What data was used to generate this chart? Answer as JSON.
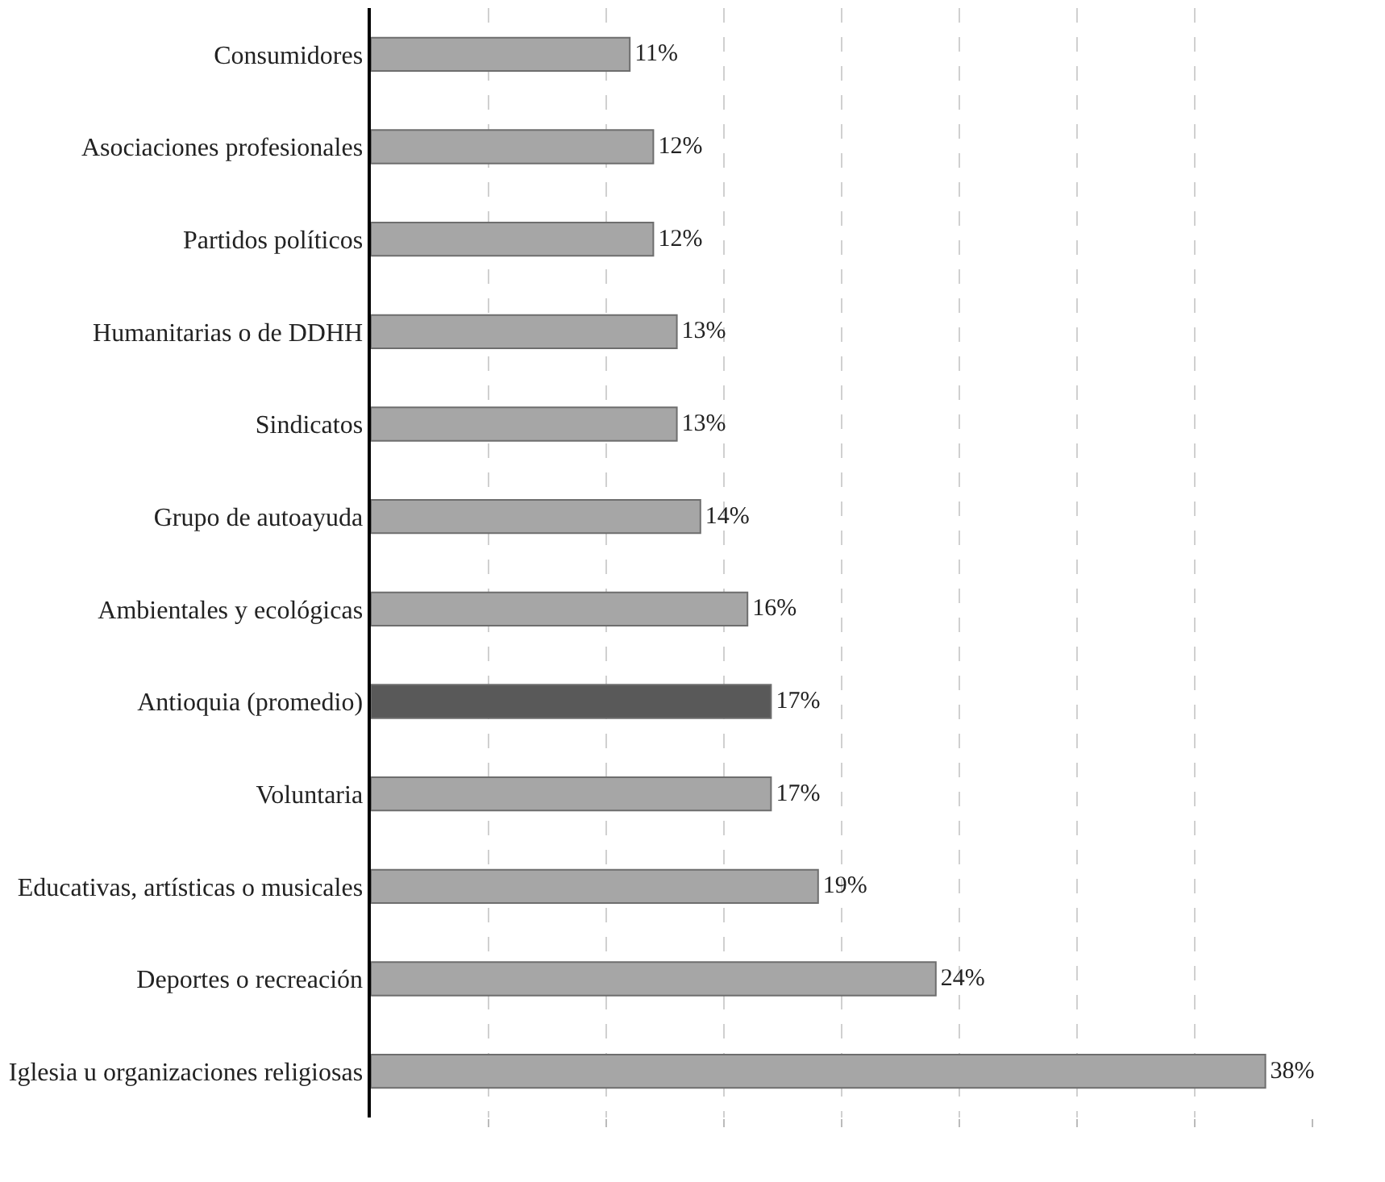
{
  "chart_data": {
    "type": "bar",
    "orientation": "horizontal",
    "categories": [
      "Consumidores",
      "Asociaciones profesionales",
      "Partidos políticos",
      "Humanitarias o de DDHH",
      "Sindicatos",
      "Grupo de autoayuda",
      "Ambientales y ecológicas",
      "Antioquia (promedio)",
      "Voluntaria",
      "Educativas, artísticas o musicales",
      "Deportes o recreación",
      "Iglesia u organizaciones religiosas"
    ],
    "values": [
      11,
      12,
      12,
      13,
      13,
      14,
      16,
      17,
      17,
      19,
      24,
      38
    ],
    "value_labels": [
      "11%",
      "12%",
      "12%",
      "13%",
      "13%",
      "14%",
      "16%",
      "17%",
      "17%",
      "19%",
      "24%",
      "38%"
    ],
    "colors": [
      "#a6a6a6",
      "#a6a6a6",
      "#a6a6a6",
      "#a6a6a6",
      "#a6a6a6",
      "#a6a6a6",
      "#a6a6a6",
      "#595959",
      "#a6a6a6",
      "#a6a6a6",
      "#a6a6a6",
      "#a6a6a6"
    ],
    "xticks": [
      {
        "value": 5,
        "label": null
      },
      {
        "value": 10,
        "label": null
      },
      {
        "value": 15,
        "label": null
      },
      {
        "value": 20,
        "label": null
      },
      {
        "value": 25,
        "label": null
      },
      {
        "value": 30,
        "label": null
      },
      {
        "value": 35,
        "label": null
      },
      {
        "value": 40,
        "label": null
      }
    ],
    "grid": "x"
  }
}
